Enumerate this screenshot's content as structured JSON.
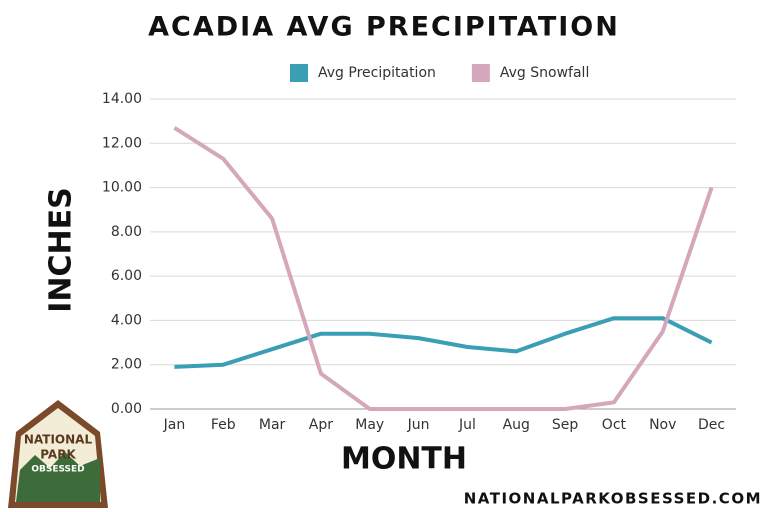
{
  "chart_data": {
    "type": "line",
    "title": "ACADIA AVG PRECIPITATION",
    "x_label": "MONTH",
    "y_label": "INCHES",
    "categories": [
      "Jan",
      "Feb",
      "Mar",
      "Apr",
      "May",
      "Jun",
      "Jul",
      "Aug",
      "Sep",
      "Oct",
      "Nov",
      "Dec"
    ],
    "series": [
      {
        "name": "Avg Precipitation",
        "color": "#3a9fb5",
        "values": [
          1.9,
          2.0,
          2.7,
          3.4,
          3.4,
          3.2,
          2.8,
          2.6,
          3.4,
          4.1,
          4.1,
          3.0
        ]
      },
      {
        "name": "Avg Snowfall",
        "color": "#d4a7bb",
        "values": [
          12.7,
          11.3,
          8.6,
          1.6,
          0,
          0,
          0,
          0,
          0,
          0.3,
          3.5,
          10.0
        ]
      }
    ],
    "ylim": [
      0,
      14
    ],
    "yticks": [
      {
        "value": 0,
        "label": "0.00"
      },
      {
        "value": 2,
        "label": "2.00"
      },
      {
        "value": 4,
        "label": "4.00"
      },
      {
        "value": 6,
        "label": "6.00"
      },
      {
        "value": 8,
        "label": "8.00"
      },
      {
        "value": 10,
        "label": "10.00"
      },
      {
        "value": 12,
        "label": "12.00"
      },
      {
        "value": 14,
        "label": "14.00"
      }
    ],
    "grid": true,
    "legend": "top"
  },
  "logo": {
    "lines": [
      "NATIONAL",
      "PARK",
      "OBSESSED"
    ]
  },
  "footer": "NATIONALPARKOBSESSED.COM"
}
